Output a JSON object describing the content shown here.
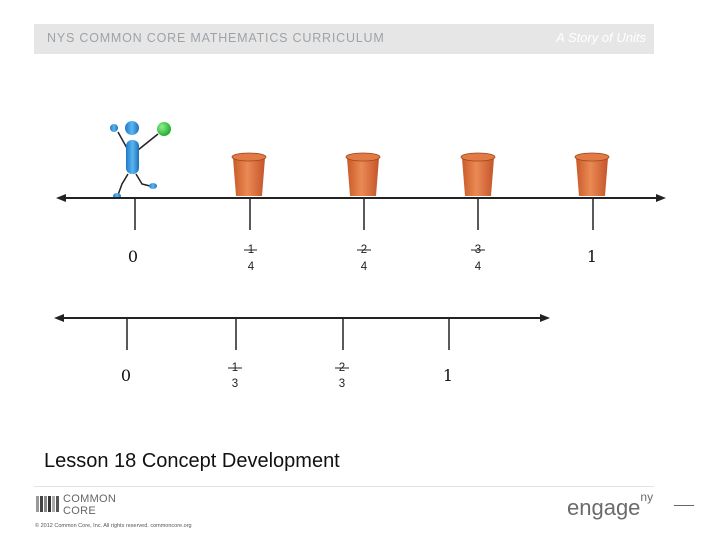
{
  "header": {
    "left_title": "NYS COMMON CORE MATHEMATICS CURRICULUM",
    "right_title": "A Story of Units"
  },
  "number_line_fourths": {
    "whole_start": "0",
    "fractions": [
      {
        "numerator": "1",
        "denominator": "4"
      },
      {
        "numerator": "2",
        "denominator": "4"
      },
      {
        "numerator": "3",
        "denominator": "4"
      }
    ],
    "whole_end": "1",
    "buckets_count": 4
  },
  "number_line_thirds": {
    "whole_start": "0",
    "fractions": [
      {
        "numerator": "1",
        "denominator": "3"
      },
      {
        "numerator": "2",
        "denominator": "3"
      }
    ],
    "whole_end": "1"
  },
  "lesson_title": "Lesson 18 Concept Development",
  "footer": {
    "logo_line1": "COMMON",
    "logo_line2": "CORE",
    "copyright": "© 2012 Common Core, Inc. All rights reserved. commoncore.org",
    "brand": "engage",
    "brand_sup": "ny"
  },
  "colors": {
    "bucket": "#e07a47",
    "figure_body": "#3d9be0",
    "ball": "#36c83a"
  },
  "icons": [
    "stick-figure-icon",
    "bucket-icon",
    "ball-icon",
    "common-core-logo-icon"
  ]
}
